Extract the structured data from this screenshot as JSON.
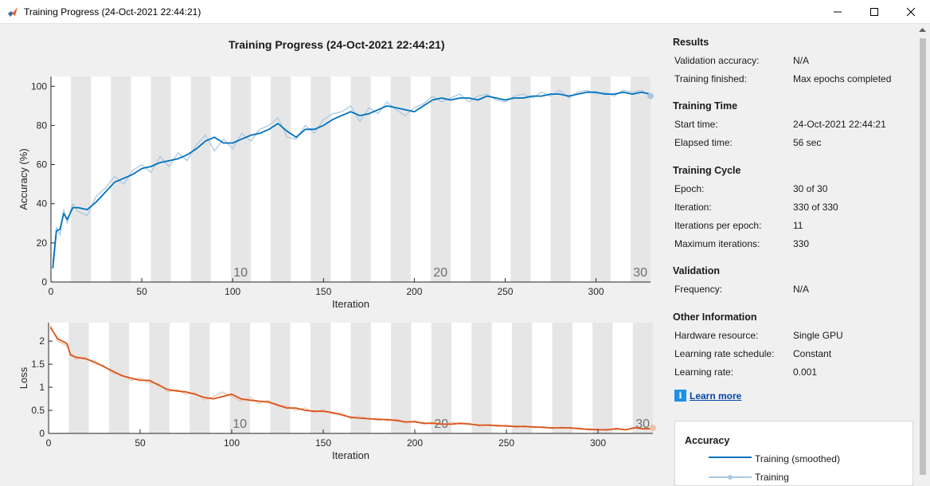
{
  "window": {
    "title": "Training Progress (24-Oct-2021 22:44:21)"
  },
  "plot_title": "Training Progress (24-Oct-2021 22:44:21)",
  "results": {
    "heading": "Results",
    "rows": [
      {
        "label": "Validation accuracy:",
        "value": "N/A"
      },
      {
        "label": "Training finished:",
        "value": "Max epochs completed"
      }
    ]
  },
  "training_time": {
    "heading": "Training Time",
    "rows": [
      {
        "label": "Start time:",
        "value": "24-Oct-2021 22:44:21"
      },
      {
        "label": "Elapsed time:",
        "value": "56 sec"
      }
    ]
  },
  "training_cycle": {
    "heading": "Training Cycle",
    "rows": [
      {
        "label": "Epoch:",
        "value": "30 of 30"
      },
      {
        "label": "Iteration:",
        "value": "330 of 330"
      },
      {
        "label": "Iterations per epoch:",
        "value": "11"
      },
      {
        "label": "Maximum iterations:",
        "value": "330"
      }
    ]
  },
  "validation": {
    "heading": "Validation",
    "rows": [
      {
        "label": "Frequency:",
        "value": "N/A"
      }
    ]
  },
  "other_info": {
    "heading": "Other Information",
    "rows": [
      {
        "label": "Hardware resource:",
        "value": "Single GPU"
      },
      {
        "label": "Learning rate schedule:",
        "value": "Constant"
      },
      {
        "label": "Learning rate:",
        "value": "0.001"
      }
    ]
  },
  "learn_more": "Learn more",
  "legend": {
    "title": "Accuracy",
    "items": [
      {
        "label": "Training (smoothed)"
      },
      {
        "label": "Training"
      }
    ]
  },
  "colors": {
    "accuracy": "#0072bd",
    "accuracy_raw": "#a9c9e2",
    "loss": "#d95319",
    "loss_raw": "#f1c2ab",
    "epoch_band": "#e6e6e6"
  },
  "chart_data": [
    {
      "type": "line",
      "ylabel": "Accuracy (%)",
      "xlabel": "Iteration",
      "xlim": [
        0,
        330
      ],
      "ylim": [
        0,
        105
      ],
      "xticks": [
        0,
        50,
        100,
        150,
        200,
        250,
        300
      ],
      "yticks": [
        0,
        20,
        40,
        60,
        80,
        100
      ],
      "epoch_labels": [
        10,
        20,
        30
      ],
      "iterations_per_epoch": 11,
      "series": [
        {
          "name": "Training (smoothed)",
          "x": [
            1,
            3,
            5,
            7,
            9,
            12,
            15,
            20,
            25,
            30,
            35,
            40,
            45,
            50,
            55,
            60,
            65,
            70,
            75,
            80,
            85,
            90,
            95,
            100,
            105,
            110,
            115,
            120,
            125,
            130,
            135,
            140,
            145,
            150,
            155,
            160,
            165,
            170,
            175,
            180,
            185,
            190,
            195,
            200,
            205,
            210,
            215,
            220,
            225,
            230,
            235,
            240,
            245,
            250,
            255,
            260,
            265,
            270,
            275,
            280,
            285,
            290,
            295,
            300,
            305,
            310,
            315,
            320,
            325,
            330
          ],
          "y": [
            7,
            26,
            27,
            35,
            32,
            38,
            38,
            37,
            41,
            46,
            51,
            53,
            55,
            58,
            59,
            61,
            62,
            63,
            65,
            68,
            72,
            74,
            71,
            71,
            73,
            75,
            76,
            78,
            81,
            77,
            74,
            78,
            78,
            80,
            83,
            85,
            87,
            85,
            86,
            88,
            90,
            89,
            88,
            87,
            90,
            93,
            94,
            93,
            94,
            94,
            93,
            95,
            94,
            93,
            94,
            94,
            95,
            95,
            96,
            96,
            95,
            96,
            97,
            97,
            96,
            96,
            97,
            96,
            97,
            96
          ]
        },
        {
          "name": "Training",
          "x": [
            1,
            3,
            5,
            7,
            9,
            12,
            15,
            20,
            25,
            30,
            35,
            40,
            45,
            50,
            55,
            60,
            65,
            70,
            75,
            80,
            85,
            90,
            95,
            100,
            105,
            110,
            115,
            120,
            125,
            130,
            135,
            140,
            145,
            150,
            155,
            160,
            165,
            170,
            175,
            180,
            185,
            190,
            195,
            200,
            205,
            210,
            215,
            220,
            225,
            230,
            235,
            240,
            245,
            250,
            255,
            260,
            265,
            270,
            275,
            280,
            285,
            290,
            295,
            300,
            305,
            310,
            315,
            320,
            325,
            330
          ],
          "y": [
            10,
            28,
            24,
            37,
            30,
            40,
            36,
            34,
            44,
            48,
            54,
            50,
            57,
            60,
            56,
            64,
            59,
            66,
            62,
            70,
            75,
            67,
            73,
            68,
            76,
            72,
            78,
            80,
            84,
            74,
            73,
            80,
            76,
            83,
            86,
            87,
            90,
            82,
            89,
            86,
            92,
            88,
            85,
            89,
            91,
            95,
            92,
            94,
            96,
            92,
            95,
            96,
            93,
            92,
            95,
            96,
            94,
            97,
            95,
            98,
            94,
            97,
            98,
            96,
            97,
            95,
            98,
            97,
            98,
            95
          ]
        }
      ]
    },
    {
      "type": "line",
      "ylabel": "Loss",
      "xlabel": "Iteration",
      "xlim": [
        0,
        330
      ],
      "ylim": [
        0,
        2.4
      ],
      "xticks": [
        0,
        50,
        100,
        150,
        200,
        250,
        300
      ],
      "yticks": [
        0,
        0.5,
        1,
        1.5,
        2
      ],
      "yticklabels": [
        "0",
        "0.5",
        "1",
        "1.5",
        "2"
      ],
      "epoch_labels": [
        10,
        20,
        30
      ],
      "iterations_per_epoch": 11,
      "series": [
        {
          "name": "Training (smoothed)",
          "x": [
            1,
            5,
            10,
            12,
            15,
            20,
            25,
            30,
            35,
            40,
            45,
            50,
            55,
            60,
            65,
            70,
            75,
            80,
            85,
            90,
            95,
            100,
            105,
            110,
            115,
            120,
            125,
            130,
            135,
            140,
            145,
            150,
            155,
            160,
            165,
            170,
            175,
            180,
            185,
            190,
            195,
            200,
            205,
            210,
            215,
            220,
            225,
            230,
            235,
            240,
            245,
            250,
            255,
            260,
            265,
            270,
            275,
            280,
            285,
            290,
            295,
            300,
            305,
            310,
            315,
            320,
            325,
            330
          ],
          "y": [
            2.3,
            2.05,
            1.95,
            1.7,
            1.65,
            1.62,
            1.55,
            1.45,
            1.35,
            1.25,
            1.2,
            1.15,
            1.15,
            1.05,
            0.95,
            0.92,
            0.9,
            0.85,
            0.78,
            0.75,
            0.8,
            0.85,
            0.75,
            0.72,
            0.7,
            0.68,
            0.62,
            0.55,
            0.55,
            0.5,
            0.48,
            0.48,
            0.45,
            0.4,
            0.35,
            0.33,
            0.32,
            0.3,
            0.3,
            0.28,
            0.25,
            0.25,
            0.22,
            0.22,
            0.2,
            0.2,
            0.22,
            0.2,
            0.18,
            0.18,
            0.17,
            0.16,
            0.15,
            0.15,
            0.14,
            0.13,
            0.12,
            0.12,
            0.12,
            0.1,
            0.09,
            0.08,
            0.08,
            0.1,
            0.08,
            0.12,
            0.1,
            0.1
          ]
        },
        {
          "name": "Training",
          "x": [
            1,
            5,
            10,
            12,
            15,
            20,
            25,
            30,
            35,
            40,
            45,
            50,
            55,
            60,
            65,
            70,
            75,
            80,
            85,
            90,
            95,
            100,
            105,
            110,
            115,
            120,
            125,
            130,
            135,
            140,
            145,
            150,
            155,
            160,
            165,
            170,
            175,
            180,
            185,
            190,
            195,
            200,
            205,
            210,
            215,
            220,
            225,
            230,
            235,
            240,
            245,
            250,
            255,
            260,
            265,
            270,
            275,
            280,
            285,
            290,
            295,
            300,
            305,
            310,
            315,
            320,
            325,
            330
          ],
          "y": [
            2.35,
            2.0,
            1.9,
            1.75,
            1.6,
            1.66,
            1.5,
            1.48,
            1.3,
            1.28,
            1.15,
            1.2,
            1.1,
            1.08,
            0.9,
            0.95,
            0.85,
            0.88,
            0.72,
            0.8,
            0.9,
            0.8,
            0.7,
            0.78,
            0.65,
            0.72,
            0.58,
            0.6,
            0.5,
            0.55,
            0.45,
            0.52,
            0.42,
            0.45,
            0.32,
            0.38,
            0.3,
            0.33,
            0.27,
            0.32,
            0.22,
            0.28,
            0.2,
            0.25,
            0.18,
            0.24,
            0.2,
            0.22,
            0.16,
            0.2,
            0.15,
            0.18,
            0.13,
            0.17,
            0.12,
            0.15,
            0.1,
            0.14,
            0.1,
            0.12,
            0.07,
            0.1,
            0.06,
            0.12,
            0.07,
            0.14,
            0.09,
            0.12
          ]
        }
      ]
    }
  ]
}
